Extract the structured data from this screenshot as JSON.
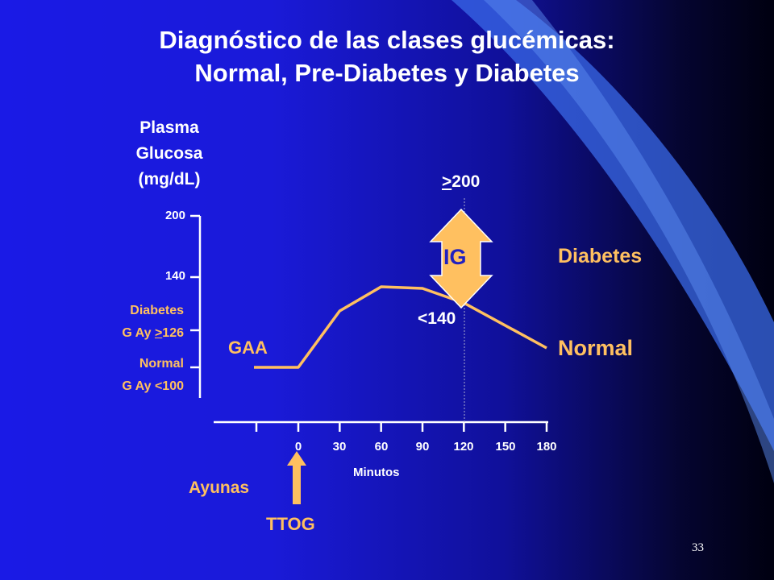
{
  "title": {
    "line1": "Diagnóstico de las clases glucémicas:",
    "line2": "Normal, Pre-Diabetes y Diabetes"
  },
  "slide_number": "33",
  "colors": {
    "curve": "#ffc060",
    "arrow_fill": "#ffc060",
    "text_white": "#ffffff",
    "axis": "#ffffff"
  },
  "chart_data": {
    "type": "line",
    "ylabel": [
      "Plasma",
      "Glucosa",
      "(mg/dL)"
    ],
    "xlabel": "Minutos",
    "x_ticks": [
      "0",
      "30",
      "60",
      "90",
      "120",
      "150",
      "180"
    ],
    "y_ticks": [
      "200",
      "140"
    ],
    "thresholds": {
      "diabetes_label": "Diabetes",
      "diabetes_prefix": "G Ay ",
      "diabetes_op": ">",
      "diabetes_value": "126",
      "normal_label": "Normal",
      "normal_prefix": "G Ay ",
      "normal_value": "<100"
    },
    "series": [
      {
        "x": [
          -30,
          0,
          30,
          60,
          90,
          120,
          180
        ],
        "y": [
          90,
          90,
          125,
          140,
          139,
          130,
          102
        ]
      }
    ],
    "annotations": {
      "gaa": "GAA",
      "ig": "IG",
      "diabetes": "Diabetes",
      "normal": "Normal",
      "upper_op": ">",
      "upper_value": "200",
      "lower": "<140",
      "fasting": "Ayunas",
      "ogtt": "TTOG"
    }
  }
}
